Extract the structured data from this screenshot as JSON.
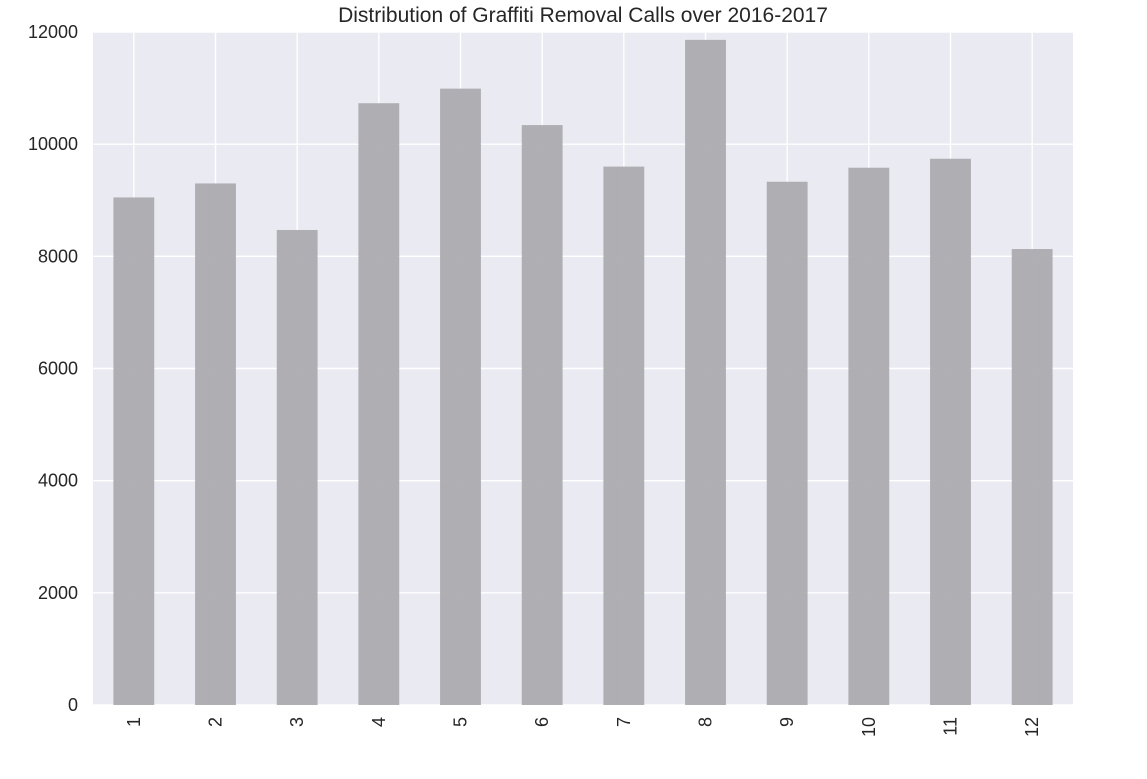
{
  "chart_data": {
    "type": "bar",
    "title": "Distribution of Graffiti Removal Calls over 2016-2017",
    "xlabel": "",
    "ylabel": "",
    "categories": [
      "1",
      "2",
      "3",
      "4",
      "5",
      "6",
      "7",
      "8",
      "9",
      "10",
      "11",
      "12"
    ],
    "values": [
      9050,
      9300,
      8470,
      10730,
      10990,
      10340,
      9600,
      11860,
      9330,
      9580,
      9740,
      8130
    ],
    "ylim": [
      0,
      12000
    ],
    "yticks": [
      "0",
      "2000",
      "4000",
      "6000",
      "8000",
      "10000",
      "12000"
    ],
    "grid": true,
    "legend": "none",
    "colors": {
      "background": "#eaeaf2",
      "bar": "#a9a8ac",
      "grid": "#ffffff",
      "text": "#262626"
    }
  }
}
